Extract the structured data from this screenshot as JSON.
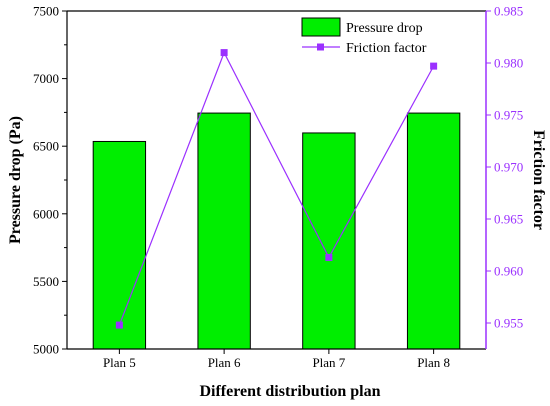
{
  "chart_data": {
    "type": "bar",
    "title": "",
    "xlabel": "Different distribution plan",
    "ylabel": "Pressure drop (Pa)",
    "y2label": "Friction factor",
    "categories": [
      "Plan 5",
      "Plan 6",
      "Plan 7",
      "Plan 8"
    ],
    "ylim": [
      5000,
      7500
    ],
    "y2lim": [
      0.9525,
      0.985
    ],
    "yticks": [
      "5000",
      "5500",
      "6000",
      "6500",
      "7000",
      "7500"
    ],
    "y2ticks": [
      "0.955",
      "0.960",
      "0.965",
      "0.970",
      "0.975",
      "0.980",
      "0.985"
    ],
    "series": [
      {
        "name": "Pressure drop",
        "type": "bar",
        "axis": "left",
        "values": [
          6535,
          6745,
          6598,
          6745
        ]
      },
      {
        "name": "Friction factor",
        "type": "line",
        "axis": "right",
        "values": [
          0.9548,
          0.981,
          0.9613,
          0.9797
        ]
      }
    ],
    "colors": {
      "bars": "#00ee00",
      "line": "#9b30ff",
      "right_axis": "#9b30ff"
    },
    "legend": "top-right",
    "grid": false
  }
}
